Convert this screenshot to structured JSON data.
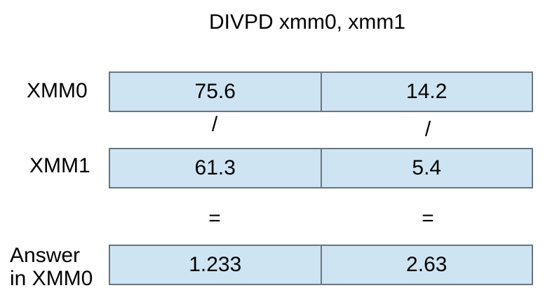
{
  "title": "DIVPD xmm0, xmm1",
  "colors": {
    "background": "#ffffff",
    "text": "#000000",
    "cell_fill": "#cee4f3",
    "cell_border": "#6b757d"
  },
  "registers": [
    {
      "label": "XMM0",
      "cells": [
        "75.6",
        "14.2"
      ]
    },
    {
      "label": "XMM1",
      "cells": [
        "61.3",
        "5.4"
      ]
    }
  ],
  "result": {
    "label": "Answer in XMM0",
    "label_lines": [
      "Answer",
      "in XMM0"
    ],
    "cells": [
      "1.233",
      "2.63"
    ]
  },
  "operators": {
    "divide": "/",
    "equals": "="
  }
}
